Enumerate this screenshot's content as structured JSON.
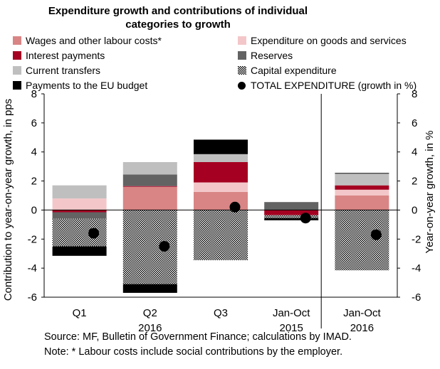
{
  "chart_data": {
    "type": "bar",
    "stacked": true,
    "title": "Expenditure growth and contributions of individual categories to growth",
    "ylabel": "Contribution to year-on-year growth, in pps",
    "ylabel_right": "Year-on-year growth, in %",
    "ylim": [
      -6,
      8
    ],
    "ylim_right": [
      -6,
      8
    ],
    "yticks": [
      "8",
      "6",
      "4",
      "2",
      "0",
      "-2",
      "-4",
      "-6"
    ],
    "categories": [
      "Q1",
      "Q2",
      "Q3",
      "Jan-Oct",
      "Jan-Oct"
    ],
    "category_group_labels": [
      "",
      "2016",
      "",
      "2015",
      "2016"
    ],
    "series": [
      {
        "name": "Wages and other labour costs*",
        "color": "#d98585",
        "values": [
          0.0,
          1.6,
          1.25,
          0.0,
          1.0
        ]
      },
      {
        "name": "Expenditure on goods and services",
        "color": "#f3c7c9",
        "values": [
          0.8,
          0.0,
          0.65,
          0.0,
          0.4
        ]
      },
      {
        "name": "Interest payments",
        "color": "#a50021",
        "values": [
          -0.15,
          0.05,
          1.4,
          -0.35,
          0.3
        ]
      },
      {
        "name": "Reserves",
        "color": "#636363",
        "values": [
          -0.45,
          0.8,
          0.0,
          0.55,
          0.0
        ]
      },
      {
        "name": "Current transfers",
        "color": "#bfbfbf",
        "values": [
          0.9,
          0.85,
          0.55,
          0.0,
          0.8
        ]
      },
      {
        "name": "Capital expenditure",
        "color": "pattern",
        "values": [
          -1.9,
          -5.1,
          -3.45,
          -0.2,
          -4.15
        ]
      },
      {
        "name": "Payments to the EU budget",
        "color": "#000000",
        "values": [
          -0.65,
          -0.6,
          1.0,
          -0.15,
          0.05
        ]
      }
    ],
    "line_series": {
      "name": "TOTAL EXPENDITURE (growth in %)",
      "marker": "dot",
      "values": [
        -1.6,
        -2.5,
        0.2,
        -0.55,
        -1.7
      ]
    },
    "grid": false,
    "legend": "top",
    "separator_after_category": 4
  },
  "notes": {
    "source": "Source: MF, Bulletin of Government Finance; calculations by IMAD.",
    "note": "Note: * Labour costs include social contributions by the employer."
  }
}
